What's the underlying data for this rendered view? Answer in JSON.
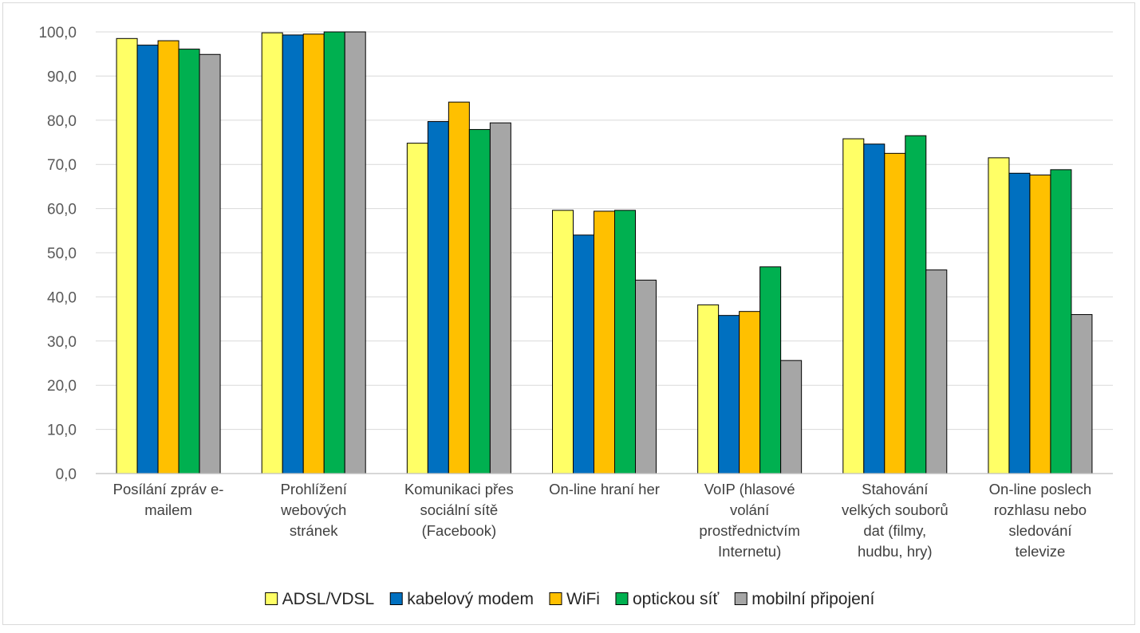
{
  "chart_data": {
    "type": "bar",
    "title": "",
    "xlabel": "",
    "ylabel": "",
    "ylim": [
      0,
      100
    ],
    "ytick_step": 10,
    "ytick_labels": [
      "0,0",
      "10,0",
      "20,0",
      "30,0",
      "40,0",
      "50,0",
      "60,0",
      "70,0",
      "80,0",
      "90,0",
      "100,0"
    ],
    "grid": true,
    "legend_position": "bottom",
    "categories": [
      [
        "Posílání zpráv e-",
        "mailem"
      ],
      [
        "Prohlížení",
        "webových",
        "stránek"
      ],
      [
        "Komunikaci přes",
        "sociální sítě",
        "(Facebook)"
      ],
      [
        "On-line hraní her"
      ],
      [
        "VoIP (hlasové",
        "volání",
        "prostřednictvím",
        "Internetu)"
      ],
      [
        "Stahování",
        "velkých souborů",
        "dat (filmy,",
        "hudbu, hry)"
      ],
      [
        "On-line poslech",
        "rozhlasu nebo",
        "sledování",
        "televize"
      ]
    ],
    "series": [
      {
        "name": "ADSL/VDSL",
        "color": "#ffff66",
        "values": [
          98.5,
          99.8,
          74.8,
          59.6,
          38.2,
          75.8,
          71.5
        ]
      },
      {
        "name": "kabelový modem",
        "color": "#0070c0",
        "values": [
          97.0,
          99.3,
          79.7,
          54.0,
          35.8,
          74.6,
          68.0
        ]
      },
      {
        "name": "WiFi",
        "color": "#ffc000",
        "values": [
          98.0,
          99.5,
          84.1,
          59.4,
          36.7,
          72.5,
          67.6
        ]
      },
      {
        "name": "optickou síť",
        "color": "#00b050",
        "values": [
          96.1,
          100.0,
          77.9,
          59.6,
          46.8,
          76.5,
          68.8
        ]
      },
      {
        "name": "mobilní připojení",
        "color": "#a6a6a6",
        "values": [
          94.9,
          100.0,
          79.4,
          43.8,
          25.6,
          46.1,
          36.0
        ]
      }
    ]
  }
}
